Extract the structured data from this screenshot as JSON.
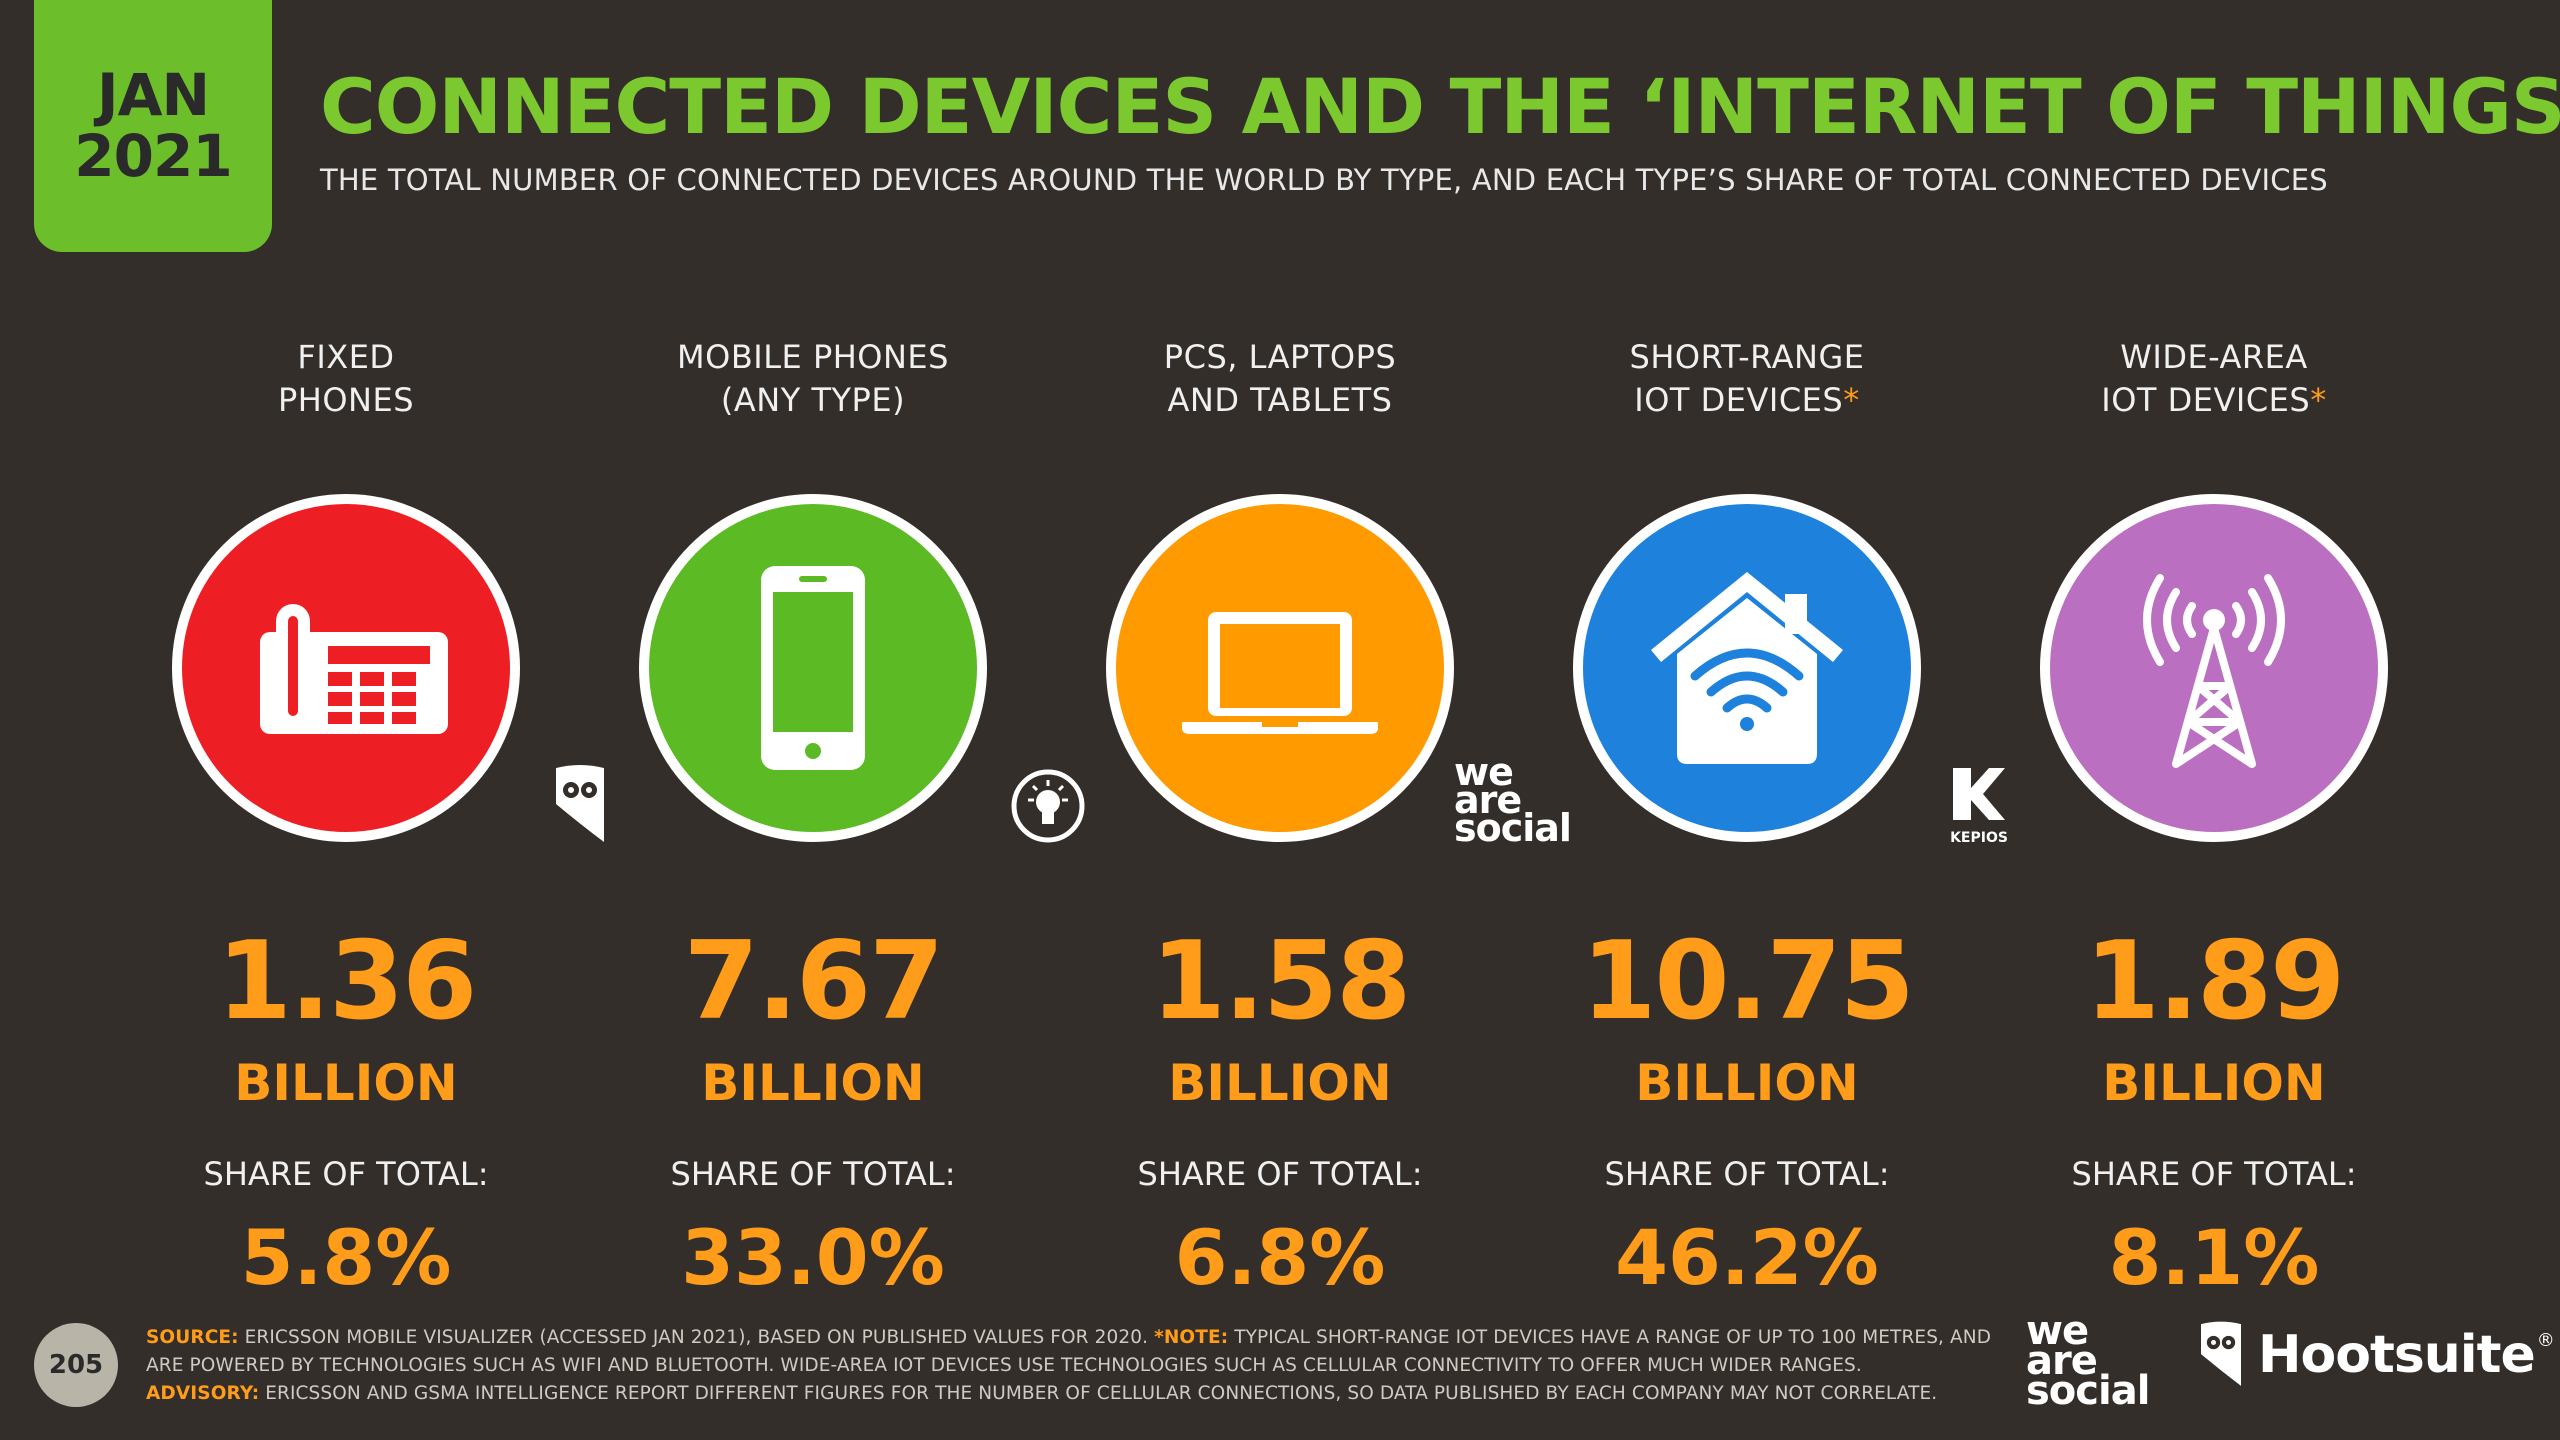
{
  "date": {
    "month": "JAN",
    "year": "2021"
  },
  "title": "CONNECTED DEVICES AND THE ‘INTERNET OF THINGS’",
  "subtitle": "THE TOTAL NUMBER OF CONNECTED DEVICES AROUND THE WORLD BY TYPE, AND EACH TYPE’S SHARE OF TOTAL CONNECTED DEVICES",
  "columns": [
    {
      "label_line1": "FIXED",
      "label_line2": "PHONES",
      "asterisk": "",
      "icon": "desk-phone-icon",
      "color": "#ee1f24",
      "value": "1.36",
      "unit": "BILLION",
      "share_label": "SHARE OF TOTAL:",
      "share": "5.8%"
    },
    {
      "label_line1": "MOBILE PHONES",
      "label_line2": "(ANY TYPE)",
      "asterisk": "",
      "icon": "smartphone-icon",
      "color": "#5cbb24",
      "value": "7.67",
      "unit": "BILLION",
      "share_label": "SHARE OF TOTAL:",
      "share": "33.0%"
    },
    {
      "label_line1": "PCS, LAPTOPS",
      "label_line2": "AND TABLETS",
      "asterisk": "",
      "icon": "laptop-icon",
      "color": "#ff9a00",
      "value": "1.58",
      "unit": "BILLION",
      "share_label": "SHARE OF TOTAL:",
      "share": "6.8%"
    },
    {
      "label_line1": "SHORT-RANGE",
      "label_line2": "IOT DEVICES",
      "asterisk": "*",
      "icon": "smart-home-icon",
      "color": "#1e82dc",
      "value": "10.75",
      "unit": "BILLION",
      "share_label": "SHARE OF TOTAL:",
      "share": "46.2%"
    },
    {
      "label_line1": "WIDE-AREA",
      "label_line2": "IOT DEVICES",
      "asterisk": "*",
      "icon": "cell-tower-icon",
      "color": "#bb6fc0",
      "value": "1.89",
      "unit": "BILLION",
      "share_label": "SHARE OF TOTAL:",
      "share": "8.1%"
    }
  ],
  "inline_logos": {
    "was_line1": "we",
    "was_line2": "are",
    "was_line3": "social",
    "kepios": "KEPIOS"
  },
  "page_number": "205",
  "footnote": {
    "source_label": "SOURCE:",
    "source_text": "ERICSSON MOBILE VISUALIZER (ACCESSED JAN 2021), BASED ON PUBLISHED VALUES FOR 2020.",
    "note_label": "*NOTE:",
    "note_text": "TYPICAL SHORT-RANGE IOT DEVICES HAVE A RANGE OF UP TO 100 METRES, AND ARE POWERED BY TECHNOLOGIES SUCH AS WIFI AND BLUETOOTH. WIDE-AREA IOT DEVICES USE TECHNOLOGIES SUCH AS CELLULAR CONNECTIVITY TO OFFER MUCH WIDER RANGES.",
    "advisory_label": "ADVISORY:",
    "advisory_text": "ERICSSON AND GSMA INTELLIGENCE REPORT DIFFERENT FIGURES FOR THE NUMBER OF CELLULAR CONNECTIONS, SO DATA PUBLISHED BY EACH COMPANY MAY NOT CORRELATE."
  },
  "brands": {
    "was_line1": "we",
    "was_line2": "are",
    "was_line3": "social",
    "hootsuite": "Hootsuite",
    "registered": "®"
  }
}
